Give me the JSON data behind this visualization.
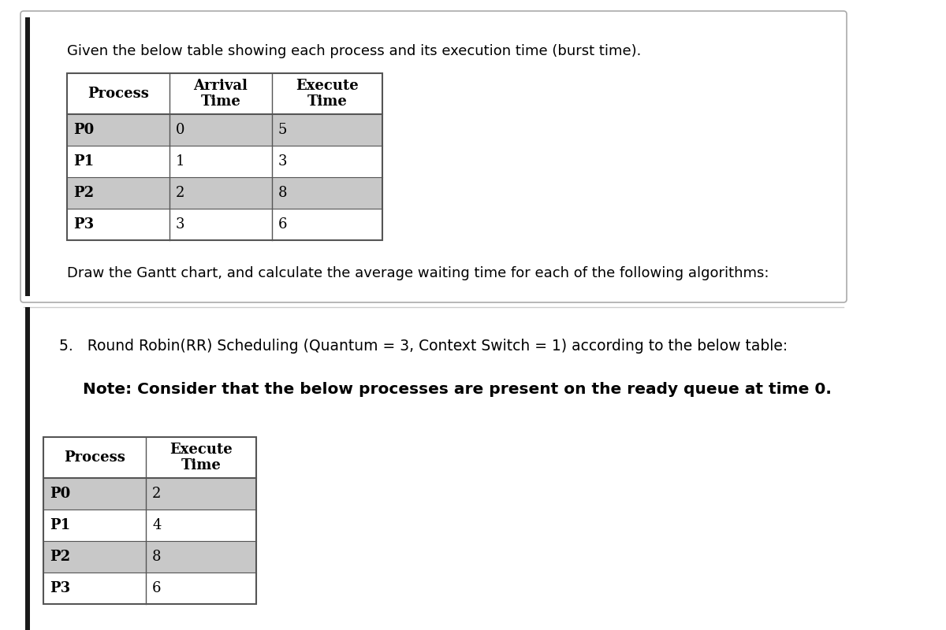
{
  "title_text": "Given the below table showing each process and its execution time (burst time).",
  "table1_headers_line1": [
    "Process",
    "Arrival",
    "Execute"
  ],
  "table1_headers_line2": [
    "",
    "Time",
    "Time"
  ],
  "table1_processes": [
    "P0",
    "P1",
    "P2",
    "P3"
  ],
  "table1_arrival": [
    "0",
    "1",
    "2",
    "3"
  ],
  "table1_execute": [
    "5",
    "3",
    "8",
    "6"
  ],
  "table1_row_colors": [
    "#c8c8c8",
    "#ffffff",
    "#c8c8c8",
    "#ffffff"
  ],
  "gantt_text": "Draw the Gantt chart, and calculate the average waiting time for each of the following algorithms:",
  "rr_text": "5.   Round Robin(RR) Scheduling (Quantum = 3, Context Switch = 1) according to the below table:",
  "note_text": "Note: Consider that the below processes are present on the ready queue at time 0.",
  "table2_headers_line1": [
    "Process",
    "Execute"
  ],
  "table2_headers_line2": [
    "",
    "Time"
  ],
  "table2_processes": [
    "P0",
    "P1",
    "P2",
    "P3"
  ],
  "table2_execute": [
    "2",
    "4",
    "8",
    "6"
  ],
  "table2_row_colors": [
    "#c8c8c8",
    "#ffffff",
    "#c8c8c8",
    "#ffffff"
  ],
  "bg_color": "#ffffff",
  "card_border_color": "#aaaaaa",
  "black_bar_color": "#1a1a1a",
  "table_border_color": "#555555",
  "text_color": "#000000"
}
